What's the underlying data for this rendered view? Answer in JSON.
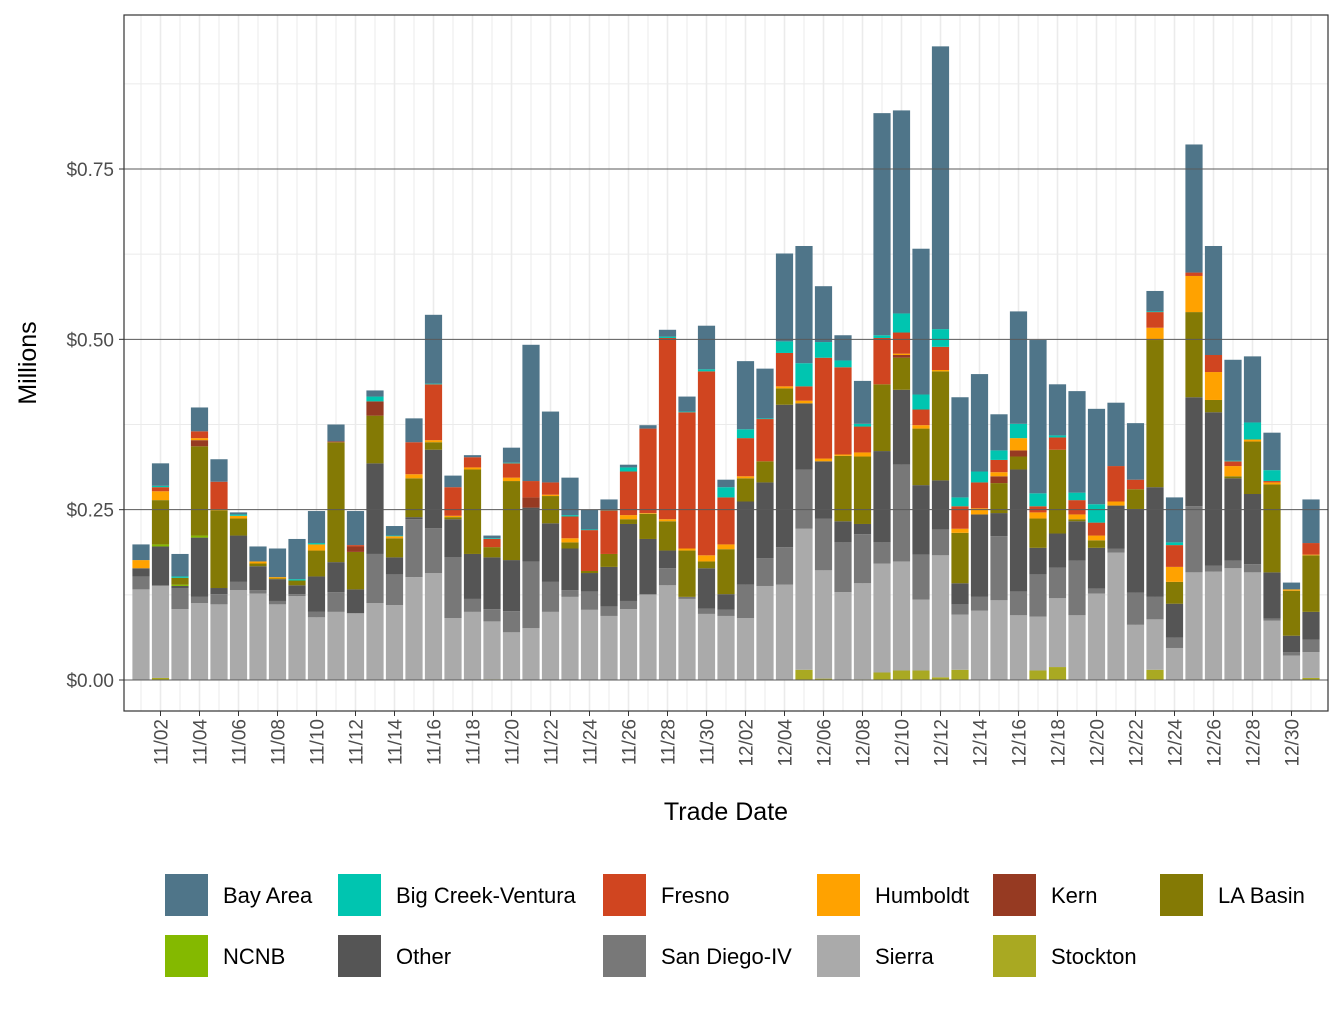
{
  "chart_data": {
    "type": "bar",
    "stacked": true,
    "xlabel": "Trade Date",
    "ylabel": "Millions",
    "ylim": [
      0,
      0.95
    ],
    "yticks": [
      0,
      0.25,
      0.5,
      0.75
    ],
    "ytick_labels": [
      "$0.00",
      "$0.25",
      "$0.50",
      "$0.75"
    ],
    "grid": true,
    "legend_position": "bottom",
    "categories": [
      "11/01",
      "11/02",
      "11/03",
      "11/04",
      "11/05",
      "11/06",
      "11/07",
      "11/08",
      "11/09",
      "11/10",
      "11/11",
      "11/12",
      "11/13",
      "11/14",
      "11/15",
      "11/16",
      "11/17",
      "11/18",
      "11/19",
      "11/20",
      "11/21",
      "11/22",
      "11/23",
      "11/24",
      "11/25",
      "11/26",
      "11/27",
      "11/28",
      "11/29",
      "11/30",
      "12/01",
      "12/02",
      "12/03",
      "12/04",
      "12/05",
      "12/06",
      "12/07",
      "12/08",
      "12/09",
      "12/10",
      "12/11",
      "12/12",
      "12/13",
      "12/14",
      "12/15",
      "12/16",
      "12/17",
      "12/18",
      "12/19",
      "12/20",
      "12/21",
      "12/22",
      "12/23",
      "12/24",
      "12/25",
      "12/26",
      "12/27",
      "12/28",
      "12/29",
      "12/30",
      "12/31"
    ],
    "xtick_labels": [
      "11/02",
      "11/04",
      "11/06",
      "11/08",
      "11/10",
      "11/12",
      "11/14",
      "11/16",
      "11/18",
      "11/20",
      "11/22",
      "11/24",
      "11/26",
      "11/28",
      "11/30",
      "12/02",
      "12/04",
      "12/06",
      "12/08",
      "12/10",
      "12/12",
      "12/14",
      "12/16",
      "12/18",
      "12/20",
      "12/22",
      "12/24",
      "12/26",
      "12/28",
      "12/30"
    ],
    "series": [
      {
        "name": "Stockton",
        "color": "#a9a922",
        "values": [
          0,
          0.003,
          0,
          0,
          0,
          0,
          0,
          0,
          0,
          0,
          0,
          0,
          0,
          0,
          0,
          0,
          0,
          0,
          0.001,
          0,
          0,
          0,
          0,
          0,
          0,
          0,
          0,
          0,
          0,
          0,
          0,
          0,
          0,
          0,
          0.015,
          0.002,
          0,
          0.001,
          0.011,
          0.014,
          0.014,
          0.004,
          0.015,
          0,
          0,
          0,
          0.014,
          0.019,
          0,
          0,
          0,
          0,
          0.015,
          0,
          0,
          0,
          0,
          0,
          0,
          0,
          0.003
        ]
      },
      {
        "name": "Sierra",
        "color": "#aaaaaa",
        "values": [
          0.133,
          0.135,
          0.104,
          0.113,
          0.111,
          0.132,
          0.127,
          0.111,
          0.123,
          0.092,
          0.1,
          0.098,
          0.113,
          0.11,
          0.151,
          0.157,
          0.091,
          0.1,
          0.085,
          0.07,
          0.076,
          0.1,
          0.122,
          0.103,
          0.094,
          0.104,
          0.125,
          0.139,
          0.119,
          0.097,
          0.094,
          0.091,
          0.138,
          0.14,
          0.207,
          0.159,
          0.129,
          0.141,
          0.16,
          0.16,
          0.104,
          0.179,
          0.081,
          0.102,
          0.117,
          0.095,
          0.079,
          0.101,
          0.095,
          0.127,
          0.187,
          0.081,
          0.074,
          0.047,
          0.158,
          0.159,
          0.164,
          0.158,
          0.087,
          0.036,
          0.038
        ]
      },
      {
        "name": "San Diego-IV",
        "color": "#787878",
        "values": [
          0.019,
          0.001,
          0.031,
          0.009,
          0.015,
          0.012,
          0.005,
          0.005,
          0.003,
          0.008,
          0.029,
          0,
          0.072,
          0.045,
          0.085,
          0.066,
          0.089,
          0.019,
          0.018,
          0.031,
          0.098,
          0.044,
          0.01,
          0.027,
          0.014,
          0.012,
          0.001,
          0.025,
          0.003,
          0.008,
          0.009,
          0.049,
          0.041,
          0.055,
          0.087,
          0.076,
          0.073,
          0.072,
          0.031,
          0.142,
          0.066,
          0.038,
          0.015,
          0.02,
          0.094,
          0.035,
          0.062,
          0.045,
          0.08,
          0.007,
          0.006,
          0.047,
          0.033,
          0.015,
          0.097,
          0.009,
          0.011,
          0.012,
          0.003,
          0.005,
          0.018
        ]
      },
      {
        "name": "Other",
        "color": "#555555",
        "values": [
          0.012,
          0.057,
          0.003,
          0.087,
          0.009,
          0.068,
          0.035,
          0.032,
          0.013,
          0.052,
          0.044,
          0.035,
          0.133,
          0.025,
          0.003,
          0.115,
          0.056,
          0.066,
          0.076,
          0.075,
          0.079,
          0.086,
          0.061,
          0.027,
          0.058,
          0.113,
          0.081,
          0.026,
          0,
          0.059,
          0.023,
          0.122,
          0.111,
          0.209,
          0.097,
          0.084,
          0.031,
          0.015,
          0.134,
          0.11,
          0.102,
          0.072,
          0.031,
          0.121,
          0.034,
          0.179,
          0.039,
          0.05,
          0.058,
          0.06,
          0.063,
          0.123,
          0.161,
          0.05,
          0.16,
          0.225,
          0.121,
          0.103,
          0.068,
          0.024,
          0.041
        ]
      },
      {
        "name": "NCNB",
        "color": "#84b900",
        "values": [
          0,
          0.003,
          0.002,
          0.003,
          0,
          0,
          0,
          0,
          0,
          0,
          0,
          0,
          0,
          0,
          0,
          0,
          0,
          0,
          0,
          0,
          0,
          0,
          0,
          0,
          0,
          0,
          0,
          0,
          0,
          0,
          0,
          0,
          0,
          0,
          0,
          0,
          0,
          0,
          0,
          0,
          0,
          0,
          0,
          0,
          0,
          0,
          0,
          0,
          0,
          0,
          0,
          0,
          0,
          0,
          0,
          0,
          0,
          0,
          0,
          0,
          0
        ]
      },
      {
        "name": "LA Basin",
        "color": "#847a05",
        "values": [
          0,
          0.065,
          0.01,
          0.131,
          0.114,
          0.025,
          0.004,
          0.001,
          0.007,
          0.038,
          0.176,
          0.055,
          0.07,
          0.028,
          0.057,
          0.011,
          0.003,
          0.124,
          0.015,
          0.116,
          0,
          0.04,
          0.009,
          0.003,
          0.019,
          0.007,
          0.037,
          0.043,
          0.068,
          0.01,
          0.066,
          0.034,
          0.031,
          0.024,
          0,
          0,
          0.096,
          0.099,
          0.098,
          0.047,
          0.083,
          0.16,
          0.074,
          0,
          0.044,
          0.019,
          0.043,
          0.123,
          0.003,
          0.011,
          0,
          0.029,
          0.216,
          0.032,
          0.125,
          0.018,
          0.003,
          0.077,
          0.129,
          0.066,
          0.083
        ]
      },
      {
        "name": "Kern",
        "color": "#963a22",
        "values": [
          0,
          0,
          0,
          0.009,
          0,
          0,
          0,
          0,
          0,
          0,
          0,
          0.008,
          0.021,
          0,
          0,
          0,
          0,
          0,
          0,
          0,
          0.015,
          0,
          0,
          0,
          0,
          0,
          0,
          0,
          0,
          0,
          0,
          0,
          0,
          0,
          0,
          0,
          0,
          0,
          0,
          0.004,
          0,
          0,
          0,
          0,
          0.01,
          0.009,
          0,
          0,
          0,
          0,
          0,
          0,
          0,
          0,
          0,
          0,
          0,
          0,
          0,
          0,
          0
        ]
      },
      {
        "name": "Humboldt",
        "color": "#ffa200",
        "values": [
          0.012,
          0.013,
          0,
          0.003,
          0.002,
          0.004,
          0.003,
          0.002,
          0,
          0.009,
          0,
          0,
          0,
          0.003,
          0.006,
          0.003,
          0.002,
          0.003,
          0,
          0.005,
          0,
          0.002,
          0.006,
          0,
          0,
          0.006,
          0.001,
          0.003,
          0.003,
          0.009,
          0.007,
          0.003,
          0,
          0.003,
          0.004,
          0.004,
          0.002,
          0.006,
          0,
          0.002,
          0.005,
          0.002,
          0.006,
          0.009,
          0.006,
          0.018,
          0.009,
          0,
          0.007,
          0.007,
          0.006,
          0,
          0.018,
          0.022,
          0.053,
          0.041,
          0.015,
          0.003,
          0.003,
          0.002,
          0.001
        ]
      },
      {
        "name": "Fresno",
        "color": "#d04520",
        "values": [
          0,
          0.006,
          0,
          0.01,
          0.04,
          0,
          0,
          0,
          0,
          0,
          0.001,
          0.002,
          0,
          0,
          0.047,
          0.082,
          0.042,
          0.015,
          0.012,
          0.021,
          0.024,
          0.018,
          0.032,
          0.06,
          0.064,
          0.064,
          0.124,
          0.266,
          0.2,
          0.27,
          0.069,
          0.056,
          0.062,
          0.049,
          0.021,
          0.148,
          0.128,
          0.038,
          0.068,
          0.031,
          0.023,
          0.034,
          0.033,
          0.038,
          0.018,
          0,
          0.009,
          0.018,
          0.021,
          0.019,
          0.052,
          0.014,
          0.023,
          0.032,
          0.005,
          0.025,
          0.007,
          0,
          0.002,
          0,
          0.017
        ]
      },
      {
        "name": "Big Creek-Ventura",
        "color": "#00c5b0",
        "values": [
          0,
          0.002,
          0.002,
          0,
          0,
          0.002,
          0,
          0,
          0.002,
          0.002,
          0,
          0,
          0.007,
          0.001,
          0,
          0.001,
          0,
          0,
          0.001,
          0.001,
          0,
          0,
          0.002,
          0.001,
          0.001,
          0.006,
          0,
          0.002,
          0.001,
          0.003,
          0.015,
          0.013,
          0.001,
          0.017,
          0.034,
          0.023,
          0.01,
          0.004,
          0.004,
          0.028,
          0.022,
          0.026,
          0.013,
          0.016,
          0.014,
          0.021,
          0.019,
          0.003,
          0.011,
          0.027,
          0,
          0,
          0.001,
          0.004,
          0,
          0,
          0.001,
          0.025,
          0.016,
          0,
          0
        ]
      },
      {
        "name": "Bay Area",
        "color": "#4f7589",
        "values": [
          0.023,
          0.033,
          0.033,
          0.035,
          0.033,
          0.003,
          0.022,
          0.042,
          0.059,
          0.047,
          0.025,
          0.05,
          0.009,
          0.014,
          0.035,
          0.101,
          0.017,
          0.003,
          0.004,
          0.022,
          0.2,
          0.104,
          0.055,
          0.029,
          0.015,
          0.004,
          0.005,
          0.01,
          0.022,
          0.064,
          0.011,
          0.1,
          0.073,
          0.129,
          0.172,
          0.082,
          0.037,
          0.063,
          0.326,
          0.298,
          0.214,
          0.415,
          0.147,
          0.143,
          0.053,
          0.165,
          0.225,
          0.075,
          0.149,
          0.14,
          0.093,
          0.083,
          0.03,
          0.066,
          0.188,
          0.16,
          0.148,
          0.097,
          0.055,
          0.01,
          0.064
        ]
      }
    ],
    "legend_order": [
      "Bay Area",
      "Big Creek-Ventura",
      "Fresno",
      "Humboldt",
      "Kern",
      "LA Basin",
      "NCNB",
      "Other",
      "San Diego-IV",
      "Sierra",
      "Stockton"
    ]
  }
}
